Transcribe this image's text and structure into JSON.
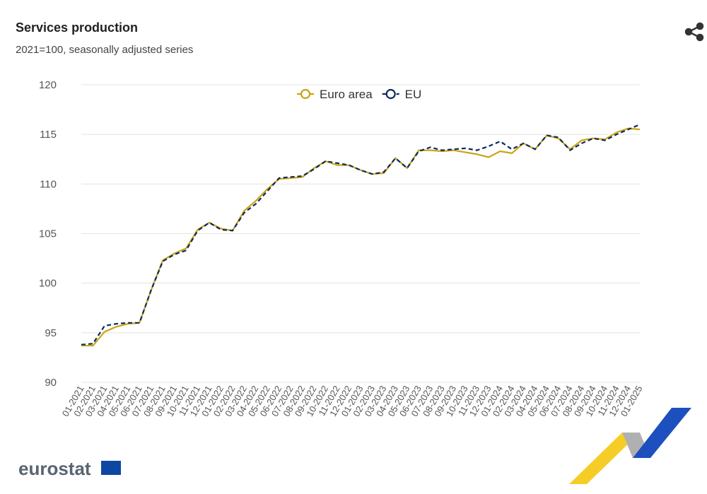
{
  "chart_data": {
    "type": "line",
    "title": "Services production",
    "subtitle": "2021=100, seasonally adjusted series",
    "logo": "eurostat",
    "categories": [
      "01-2021",
      "02-2021",
      "03-2021",
      "04-2021",
      "05-2021",
      "06-2021",
      "07-2021",
      "08-2021",
      "09-2021",
      "10-2021",
      "11-2021",
      "12-2021",
      "01-2022",
      "02-2022",
      "03-2022",
      "04-2022",
      "05-2022",
      "06-2022",
      "07-2022",
      "08-2022",
      "09-2022",
      "10-2022",
      "11-2022",
      "12-2022",
      "01-2023",
      "02-2023",
      "03-2023",
      "04-2023",
      "05-2023",
      "06-2023",
      "07-2023",
      "08-2023",
      "09-2023",
      "10-2023",
      "11-2023",
      "12-2023",
      "01-2024",
      "02-2024",
      "03-2024",
      "04-2024",
      "05-2024",
      "06-2024",
      "07-2024",
      "08-2024",
      "09-2024",
      "10-2024",
      "11-2024",
      "12-2024",
      "01-2025"
    ],
    "series": [
      {
        "name": "Euro area",
        "color": "#c9a512",
        "dashed": false,
        "values": [
          93.7,
          93.7,
          95.1,
          95.6,
          95.9,
          96.0,
          99.3,
          102.3,
          103.0,
          103.5,
          105.4,
          106.1,
          105.5,
          105.3,
          107.3,
          108.3,
          109.5,
          110.5,
          110.6,
          110.7,
          111.6,
          112.3,
          111.9,
          111.9,
          111.4,
          111.0,
          111.1,
          112.6,
          111.6,
          113.4,
          113.4,
          113.3,
          113.4,
          113.2,
          113.0,
          112.7,
          113.3,
          113.1,
          114.1,
          113.5,
          114.9,
          114.6,
          113.5,
          114.4,
          114.6,
          114.5,
          115.2,
          115.6,
          115.5
        ]
      },
      {
        "name": "EU",
        "color": "#0e2a5e",
        "dashed": true,
        "values": [
          93.8,
          93.9,
          95.7,
          95.9,
          96.0,
          96.0,
          99.3,
          102.2,
          102.9,
          103.3,
          105.3,
          106.1,
          105.4,
          105.3,
          107.1,
          108.0,
          109.3,
          110.6,
          110.7,
          110.8,
          111.5,
          112.3,
          112.1,
          111.9,
          111.4,
          111.0,
          111.2,
          112.6,
          111.6,
          113.3,
          113.7,
          113.4,
          113.5,
          113.6,
          113.4,
          113.8,
          114.3,
          113.5,
          114.1,
          113.5,
          114.9,
          114.7,
          113.4,
          114.1,
          114.6,
          114.4,
          115.0,
          115.5,
          116.0
        ]
      }
    ],
    "ylim": [
      90,
      120
    ],
    "yticks": [
      90,
      95,
      100,
      105,
      110,
      115,
      120
    ],
    "grid": true,
    "legend": "top"
  }
}
